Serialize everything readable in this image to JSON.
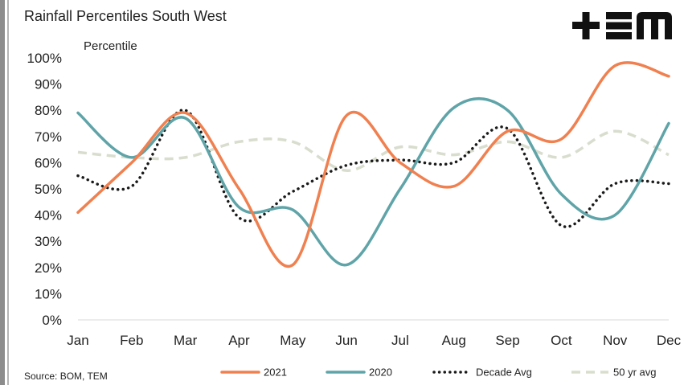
{
  "page": {
    "title": "Rainfall Percentiles South West",
    "source": "Source: BOM, TEM",
    "logo_text": "+≡m"
  },
  "chart_data": {
    "type": "line",
    "title": "Rainfall Percentiles South West",
    "ylabel": "Percentile",
    "xlabel": "",
    "categories": [
      "Jan",
      "Feb",
      "Mar",
      "Apr",
      "May",
      "Jun",
      "Jul",
      "Aug",
      "Sep",
      "Oct",
      "Nov",
      "Dec"
    ],
    "y_ticks": [
      "0%",
      "10%",
      "20%",
      "30%",
      "40%",
      "50%",
      "60%",
      "70%",
      "80%",
      "90%",
      "100%"
    ],
    "ylim": [
      0,
      100
    ],
    "grid": false,
    "legend_position": "bottom",
    "series": [
      {
        "name": "2021",
        "color": "#F0804F",
        "style": "solid",
        "values": [
          41,
          60,
          79,
          50,
          21,
          78,
          60,
          51,
          72,
          69,
          97,
          93
        ]
      },
      {
        "name": "2020",
        "color": "#5FA4A8",
        "style": "solid",
        "values": [
          79,
          62,
          77,
          43,
          42,
          21,
          50,
          81,
          80,
          48,
          40,
          75
        ]
      },
      {
        "name": "Decade Avg",
        "color": "#1a1a1a",
        "style": "dotted",
        "values": [
          55,
          51,
          80,
          39,
          49,
          59,
          61,
          60,
          73,
          36,
          52,
          52
        ]
      },
      {
        "name": "50 yr avg",
        "color": "#D8DDCE",
        "style": "dashed",
        "values": [
          64,
          62,
          62,
          68,
          68,
          57,
          66,
          63,
          68,
          62,
          72,
          63
        ]
      }
    ]
  }
}
